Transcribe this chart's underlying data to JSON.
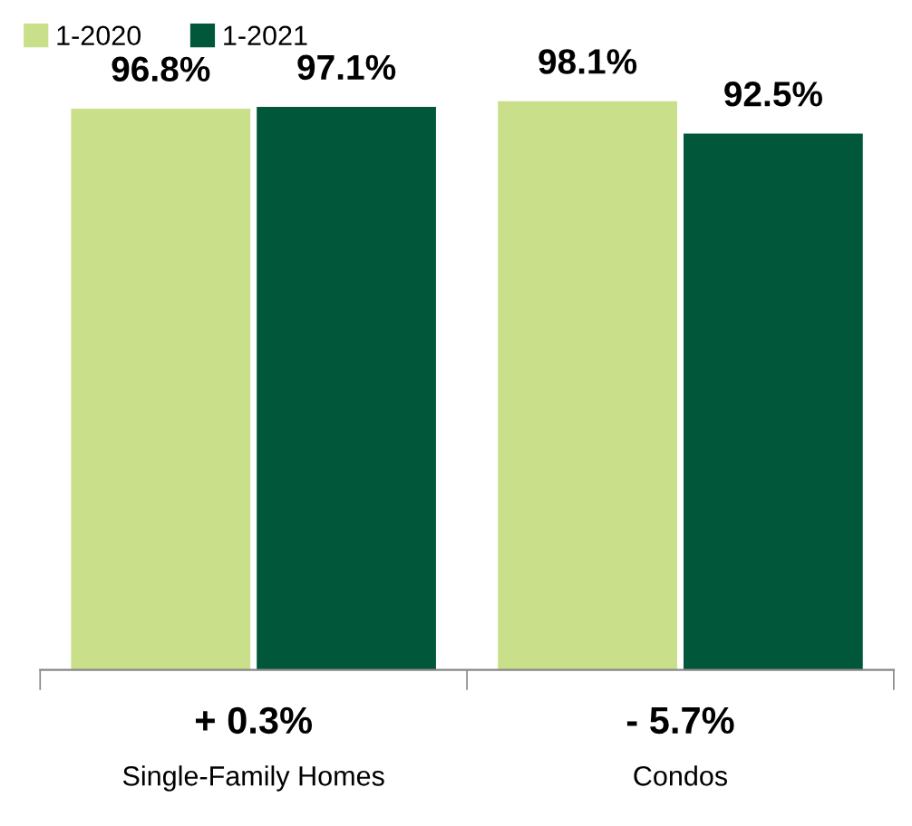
{
  "chart_data": {
    "type": "bar",
    "categories": [
      "Single-Family Homes",
      "Condos"
    ],
    "series": [
      {
        "name": "1-2020",
        "color": "#c9df8a",
        "values": [
          96.8,
          98.1
        ],
        "value_labels": [
          "96.8%",
          "98.1%"
        ]
      },
      {
        "name": "1-2021",
        "color": "#00573a",
        "values": [
          97.1,
          92.5
        ],
        "value_labels": [
          "97.1%",
          "92.5%"
        ]
      }
    ],
    "tick_labels": "x",
    "grid": false,
    "legend": "top left",
    "annotations": [
      "+ 0.3%",
      "- 5.7%"
    ]
  }
}
